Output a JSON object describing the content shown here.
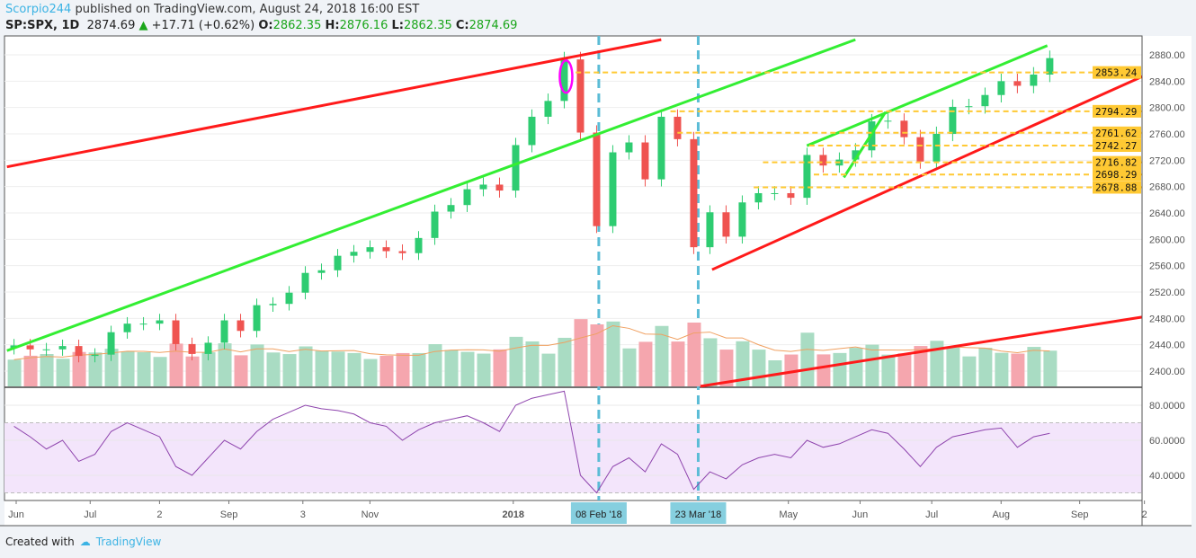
{
  "header": {
    "author": "Scorpio244",
    "published": "published on TradingView.com, August 24, 2018 16:00 EST",
    "symbol": "SP:SPX, 1D",
    "last": "2874.69",
    "change": "+17.71 (+0.62%)",
    "o_label": "O:",
    "o": "2862.35",
    "h_label": "H:",
    "h": "2876.16",
    "l_label": "L:",
    "l": "2862.35",
    "c_label": "C:",
    "c": "2874.69"
  },
  "footer": {
    "created": "Created with",
    "brand": "TradingView"
  },
  "colors": {
    "up": "#26a69a",
    "up_candle": "#2ecc71",
    "down": "#ef5350",
    "trend_red": "#ff1a1a",
    "trend_green": "#33ee33",
    "level": "#ffc933",
    "vline": "#5bbcd6",
    "rsi": "#8e44ad",
    "rsi_band": "#f3e5fb",
    "ellipse": "#ff00ff"
  },
  "chart_data": {
    "type": "candlestick",
    "ylim": [
      2380,
      2905
    ],
    "price_ticks": [
      2880,
      2840,
      2800,
      2760,
      2720,
      2680,
      2640,
      2600,
      2560,
      2520,
      2480,
      2440,
      2400
    ],
    "price_tick_labels": [
      "2880.00",
      "2840.00",
      "2800.00",
      "2760.00",
      "2720.00",
      "2680.00",
      "2640.00",
      "2600.00",
      "2560.00",
      "2520.00",
      "2480.00",
      "2440.00",
      "2400.00"
    ],
    "time_labels": [
      {
        "date": "2017-06-01",
        "label": "Jun"
      },
      {
        "date": "2017-07-03",
        "label": "Jul"
      },
      {
        "date": "2017-08-02",
        "label": "2"
      },
      {
        "date": "2017-09-01",
        "label": "Sep"
      },
      {
        "date": "2017-10-03",
        "label": "3"
      },
      {
        "date": "2017-11-01",
        "label": "Nov"
      },
      {
        "date": "2018-01-02",
        "label": "2018",
        "bold": true
      },
      {
        "date": "2018-05-01",
        "label": "May"
      },
      {
        "date": "2018-06-01",
        "label": "Jun"
      },
      {
        "date": "2018-07-02",
        "label": "Jul"
      },
      {
        "date": "2018-08-01",
        "label": "Aug"
      },
      {
        "date": "2018-09-04",
        "label": "Sep"
      },
      {
        "date": "2018-10-02",
        "label": "2"
      }
    ],
    "highlight_dates": [
      {
        "date": "2018-02-08",
        "label": "08 Feb '18"
      },
      {
        "date": "2018-03-23",
        "label": "23 Mar '18"
      }
    ],
    "weekly_closes": {
      "dates": [
        "2017-06-02",
        "2017-06-09",
        "2017-06-16",
        "2017-06-23",
        "2017-06-30",
        "2017-07-07",
        "2017-07-14",
        "2017-07-21",
        "2017-07-28",
        "2017-08-04",
        "2017-08-11",
        "2017-08-18",
        "2017-08-25",
        "2017-09-01",
        "2017-09-08",
        "2017-09-15",
        "2017-09-22",
        "2017-09-29",
        "2017-10-06",
        "2017-10-13",
        "2017-10-20",
        "2017-10-27",
        "2017-11-03",
        "2017-11-10",
        "2017-11-17",
        "2017-11-24",
        "2017-12-01",
        "2017-12-08",
        "2017-12-15",
        "2017-12-22",
        "2017-12-29",
        "2018-01-05",
        "2018-01-12",
        "2018-01-19",
        "2018-01-26",
        "2018-02-02",
        "2018-02-09",
        "2018-02-16",
        "2018-02-23",
        "2018-03-02",
        "2018-03-09",
        "2018-03-16",
        "2018-03-23",
        "2018-03-30",
        "2018-04-06",
        "2018-04-13",
        "2018-04-20",
        "2018-04-27",
        "2018-05-04",
        "2018-05-11",
        "2018-05-18",
        "2018-05-25",
        "2018-06-01",
        "2018-06-08",
        "2018-06-15",
        "2018-06-22",
        "2018-06-29",
        "2018-07-06",
        "2018-07-13",
        "2018-07-20",
        "2018-07-27",
        "2018-08-03",
        "2018-08-10",
        "2018-08-17",
        "2018-08-24"
      ],
      "close": [
        2439,
        2433,
        2433,
        2438,
        2423,
        2425,
        2459,
        2472,
        2472,
        2477,
        2441,
        2426,
        2443,
        2477,
        2461,
        2500,
        2502,
        2519,
        2549,
        2553,
        2575,
        2581,
        2588,
        2582,
        2579,
        2602,
        2642,
        2652,
        2676,
        2683,
        2674,
        2743,
        2786,
        2810,
        2873,
        2762,
        2620,
        2732,
        2747,
        2691,
        2786,
        2752,
        2588,
        2641,
        2604,
        2656,
        2670,
        2670,
        2663,
        2728,
        2712,
        2721,
        2735,
        2779,
        2780,
        2755,
        2718,
        2760,
        2801,
        2802,
        2819,
        2840,
        2833,
        2850,
        2875
      ],
      "rsi": [
        68,
        62,
        55,
        60,
        48,
        52,
        65,
        70,
        66,
        62,
        45,
        40,
        50,
        60,
        55,
        65,
        72,
        76,
        80,
        78,
        77,
        75,
        70,
        68,
        60,
        66,
        70,
        72,
        74,
        70,
        65,
        80,
        84,
        86,
        88,
        40,
        30,
        45,
        50,
        42,
        58,
        52,
        32,
        42,
        38,
        46,
        50,
        52,
        50,
        60,
        56,
        58,
        62,
        66,
        64,
        55,
        45,
        56,
        62,
        64,
        66,
        67,
        56,
        62,
        64
      ]
    },
    "levels": [
      {
        "price": 2853.24,
        "label": "2853.24",
        "from": "2018-01-29"
      },
      {
        "price": 2794.29,
        "label": "2794.29",
        "from": "2018-03-11"
      },
      {
        "price": 2761.62,
        "label": "2761.62",
        "from": "2018-03-14"
      },
      {
        "price": 2742.27,
        "label": "2742.27",
        "from": "2018-05-10"
      },
      {
        "price": 2716.82,
        "label": "2716.82",
        "from": "2018-04-20"
      },
      {
        "price": 2698.29,
        "label": "2698.29",
        "from": "2018-05-12"
      },
      {
        "price": 2678.88,
        "label": "2678.88",
        "from": "2018-04-16"
      }
    ],
    "trendlines": [
      {
        "color": "red",
        "from": [
          "2017-05-28",
          2710
        ],
        "to": [
          "2018-03-07",
          2903
        ]
      },
      {
        "color": "green",
        "from": [
          "2017-05-28",
          2431
        ],
        "to": [
          "2018-05-30",
          2903
        ]
      },
      {
        "color": "red",
        "from": [
          "2018-03-29",
          2554
        ],
        "to": [
          "2018-10-01",
          2847
        ]
      },
      {
        "color": "red",
        "from": [
          "2018-03-24",
          2377
        ],
        "to": [
          "2018-10-01",
          2482
        ]
      },
      {
        "color": "green",
        "from": [
          "2018-05-09",
          2742
        ],
        "to": [
          "2018-08-21",
          2894
        ]
      },
      {
        "color": "green",
        "from": [
          "2018-05-25",
          2694
        ],
        "to": [
          "2018-06-12",
          2793
        ]
      }
    ],
    "ellipse": {
      "date": "2018-01-26",
      "price": 2847
    },
    "rsi_ticks": [
      80,
      60,
      40
    ],
    "rsi_tick_labels": [
      "80.0000",
      "60.0000",
      "40.0000"
    ],
    "rsi_band": [
      30,
      70
    ]
  }
}
